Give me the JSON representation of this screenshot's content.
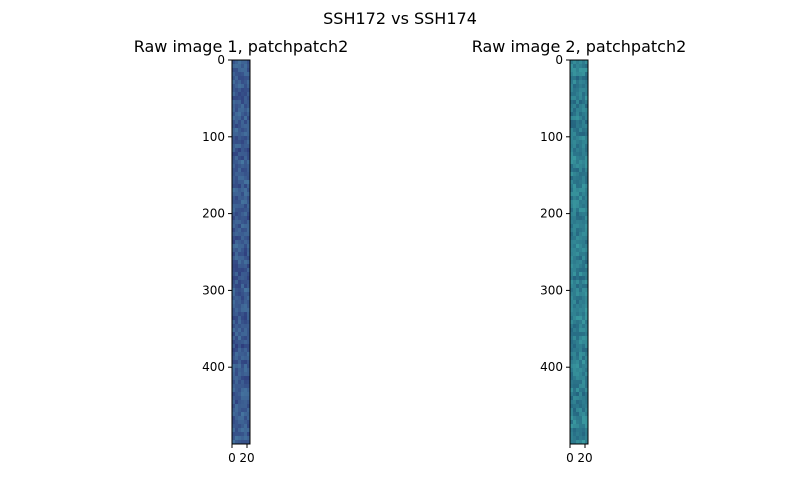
{
  "figure": {
    "suptitle": "SSH172 vs SSH174"
  },
  "chart_data": [
    {
      "type": "heatmap",
      "title": "Raw image 1, patchpatch2",
      "xlabel": "",
      "ylabel": "",
      "xlim": [
        0,
        24
      ],
      "ylim": [
        500,
        0
      ],
      "xticks": [
        0,
        20
      ],
      "yticks": [
        0,
        100,
        200,
        300,
        400
      ],
      "colormap": "viridis",
      "dominant_color": "#3a5a8f",
      "grid": false,
      "legend": "none"
    },
    {
      "type": "heatmap",
      "title": "Raw image 2, patchpatch2",
      "xlabel": "",
      "ylabel": "",
      "xlim": [
        0,
        24
      ],
      "ylim": [
        500,
        0
      ],
      "xticks": [
        0,
        20
      ],
      "yticks": [
        0,
        100,
        200,
        300,
        400
      ],
      "colormap": "viridis",
      "dominant_color": "#2f7f90",
      "grid": false,
      "legend": "none"
    }
  ]
}
